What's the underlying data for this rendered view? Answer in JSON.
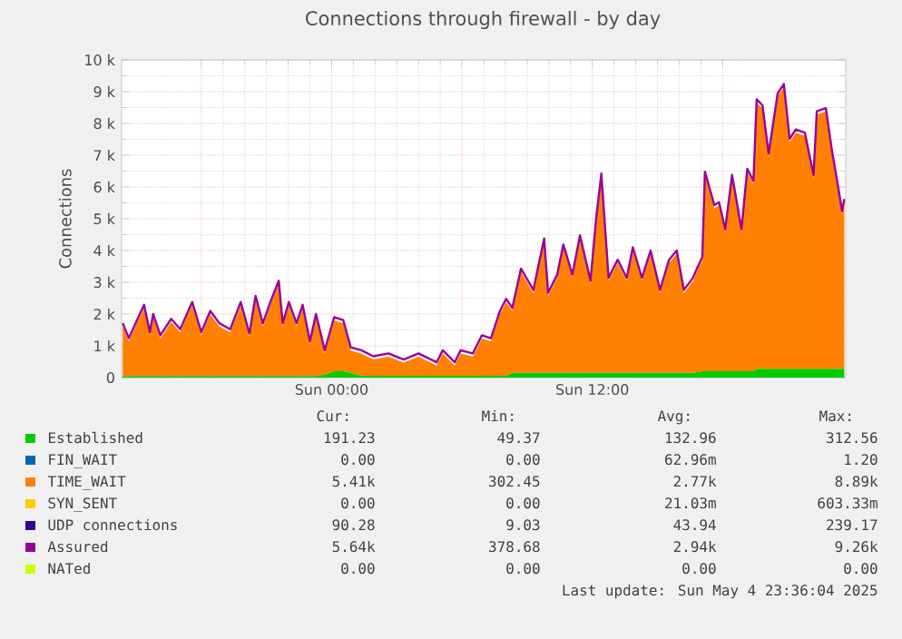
{
  "chart_data": {
    "type": "area",
    "stacked": true,
    "title": "Connections through firewall - by day",
    "ylabel": "Connections",
    "grid": true,
    "legend": "bottom",
    "xlim": [
      "2025-05-03T14:20",
      "2025-05-04T23:40"
    ],
    "xticks": [
      {
        "value": "2025-05-03T18:00",
        "label": null
      },
      {
        "value": "2025-05-04T00:00",
        "label": "Sun 00:00"
      },
      {
        "value": "2025-05-04T06:00",
        "label": null
      },
      {
        "value": "2025-05-04T12:00",
        "label": "Sun 12:00"
      },
      {
        "value": "2025-05-04T18:00",
        "label": null
      }
    ],
    "ylim": [
      0,
      10000
    ],
    "yticks": [
      0,
      {
        "value": 1000,
        "label": "1 k"
      },
      {
        "value": 2000,
        "label": "2 k"
      },
      {
        "value": 3000,
        "label": "3 k"
      },
      {
        "value": 4000,
        "label": "4 k"
      },
      {
        "value": 5000,
        "label": "5 k"
      },
      {
        "value": 6000,
        "label": "6 k"
      },
      {
        "value": 7000,
        "label": "7 k"
      },
      {
        "value": 8000,
        "label": "8 k"
      },
      {
        "value": 9000,
        "label": "9 k"
      },
      {
        "value": 10000,
        "label": "10 k"
      }
    ],
    "x": [
      "2025-05-03T14:23",
      "2025-05-03T14:40",
      "2025-05-03T15:22",
      "2025-05-03T15:38",
      "2025-05-03T15:47",
      "2025-05-03T16:07",
      "2025-05-03T16:37",
      "2025-05-03T17:02",
      "2025-05-03T17:35",
      "2025-05-03T18:00",
      "2025-05-03T18:25",
      "2025-05-03T18:50",
      "2025-05-03T19:20",
      "2025-05-03T19:49",
      "2025-05-03T20:13",
      "2025-05-03T20:30",
      "2025-05-03T20:50",
      "2025-05-03T21:11",
      "2025-05-03T21:34",
      "2025-05-03T21:45",
      "2025-05-03T22:02",
      "2025-05-03T22:23",
      "2025-05-03T22:40",
      "2025-05-03T23:00",
      "2025-05-03T23:17",
      "2025-05-03T23:41",
      "2025-05-04T00:07",
      "2025-05-04T00:32",
      "2025-05-04T00:53",
      "2025-05-04T01:22",
      "2025-05-04T01:55",
      "2025-05-04T02:37",
      "2025-05-04T03:19",
      "2025-05-04T04:00",
      "2025-05-04T04:50",
      "2025-05-04T05:07",
      "2025-05-04T05:40",
      "2025-05-04T05:56",
      "2025-05-04T06:30",
      "2025-05-04T06:55",
      "2025-05-04T07:20",
      "2025-05-04T07:45",
      "2025-05-04T08:02",
      "2025-05-04T08:19",
      "2025-05-04T08:43",
      "2025-05-04T09:17",
      "2025-05-04T09:47",
      "2025-05-04T09:58",
      "2025-05-04T10:23",
      "2025-05-04T10:40",
      "2025-05-04T11:05",
      "2025-05-04T11:26",
      "2025-05-04T11:55",
      "2025-05-04T12:11",
      "2025-05-04T12:25",
      "2025-05-04T12:45",
      "2025-05-04T13:10",
      "2025-05-04T13:35",
      "2025-05-04T13:52",
      "2025-05-04T14:17",
      "2025-05-04T14:41",
      "2025-05-04T15:07",
      "2025-05-04T15:32",
      "2025-05-04T15:53",
      "2025-05-04T16:13",
      "2025-05-04T16:38",
      "2025-05-04T17:04",
      "2025-05-04T17:11",
      "2025-05-04T17:37",
      "2025-05-04T17:50",
      "2025-05-04T18:07",
      "2025-05-04T18:26",
      "2025-05-04T18:52",
      "2025-05-04T19:08",
      "2025-05-04T19:25",
      "2025-05-04T19:34",
      "2025-05-04T19:50",
      "2025-05-04T20:07",
      "2025-05-04T20:32",
      "2025-05-04T20:49",
      "2025-05-04T21:05",
      "2025-05-04T21:22",
      "2025-05-04T21:47",
      "2025-05-04T22:11",
      "2025-05-04T22:20",
      "2025-05-04T22:45",
      "2025-05-04T23:02",
      "2025-05-04T23:19",
      "2025-05-04T23:30",
      "2025-05-04T23:36"
    ],
    "series": [
      {
        "name": "Established",
        "color": "#00cc00",
        "values": [
          50,
          50,
          50,
          50,
          50,
          50,
          50,
          50,
          50,
          50,
          50,
          50,
          50,
          50,
          50,
          50,
          50,
          50,
          50,
          50,
          50,
          50,
          50,
          50,
          50,
          100,
          200,
          200,
          150,
          60,
          60,
          60,
          60,
          60,
          60,
          60,
          60,
          60,
          60,
          60,
          60,
          60,
          60,
          150,
          150,
          150,
          150,
          150,
          150,
          150,
          150,
          150,
          150,
          150,
          150,
          150,
          150,
          150,
          150,
          150,
          150,
          150,
          150,
          150,
          150,
          150,
          200,
          200,
          200,
          200,
          200,
          200,
          200,
          200,
          200,
          280,
          280,
          280,
          280,
          280,
          280,
          280,
          280,
          280,
          280,
          280,
          280,
          280,
          280,
          280
        ]
      },
      {
        "name": "FIN_WAIT",
        "color": "#0066b3",
        "values": [
          null,
          null,
          null,
          null,
          null,
          null,
          null,
          null,
          null,
          null,
          null,
          null,
          null,
          null,
          null,
          null,
          null,
          null,
          null,
          null,
          null,
          null,
          null,
          null,
          null,
          null,
          null,
          null,
          null,
          null,
          null,
          null,
          null,
          null,
          null,
          null,
          null,
          null,
          null,
          null,
          null,
          null,
          null,
          null,
          null,
          null,
          null,
          null,
          null,
          null,
          null,
          null,
          null,
          null,
          null,
          null,
          null,
          null,
          null,
          null,
          null,
          null,
          null,
          null,
          null,
          null,
          null,
          null,
          null,
          null,
          null,
          null,
          null,
          null,
          null,
          null,
          null,
          null,
          null,
          null,
          null,
          null,
          null,
          null,
          null,
          null,
          null,
          null,
          null,
          null
        ]
      },
      {
        "name": "TIME_WAIT",
        "color": "#ff8000",
        "values": [
          1560,
          1090,
          2140,
          1280,
          1850,
          1180,
          1700,
          1370,
          2230,
          1280,
          1950,
          1560,
          1370,
          2230,
          1240,
          2420,
          1560,
          2230,
          2900,
          1560,
          2230,
          1560,
          2140,
          990,
          1850,
          660,
          1600,
          1510,
          700,
          700,
          510,
          600,
          410,
          600,
          320,
          700,
          320,
          700,
          600,
          1170,
          1080,
          1940,
          2320,
          1940,
          3180,
          2510,
          4130,
          2420,
          2990,
          3940,
          2990,
          4230,
          2800,
          4800,
          6170,
          2890,
          3460,
          2890,
          3850,
          2890,
          3750,
          2510,
          3460,
          3750,
          2510,
          2890,
          3510,
          6180,
          5130,
          5220,
          4370,
          6080,
          4370,
          6270,
          5890,
          8380,
          8190,
          6670,
          8570,
          8860,
          7140,
          7430,
          7330,
          6000,
          8000,
          8100,
          6760,
          5620,
          4860,
          5240
        ]
      },
      {
        "name": "SYN_SENT",
        "color": "#ffcc00",
        "values": [
          null,
          null,
          null,
          null,
          null,
          null,
          null,
          null,
          null,
          null,
          null,
          null,
          null,
          null,
          null,
          null,
          null,
          null,
          null,
          null,
          null,
          null,
          null,
          null,
          null,
          null,
          null,
          null,
          null,
          null,
          null,
          null,
          null,
          null,
          null,
          null,
          null,
          null,
          null,
          null,
          null,
          null,
          null,
          null,
          null,
          null,
          null,
          null,
          null,
          null,
          null,
          null,
          null,
          null,
          null,
          null,
          null,
          null,
          null,
          null,
          null,
          null,
          null,
          null,
          null,
          null,
          null,
          null,
          null,
          null,
          null,
          null,
          null,
          null,
          null,
          null,
          null,
          null,
          null,
          null,
          null,
          null,
          null,
          null,
          null,
          null,
          null,
          null,
          null,
          null
        ]
      },
      {
        "name": "UDP connections",
        "color": "#330099",
        "values": [
          null,
          null,
          null,
          null,
          null,
          null,
          null,
          null,
          null,
          null,
          null,
          null,
          null,
          null,
          null,
          null,
          null,
          null,
          null,
          null,
          null,
          null,
          null,
          null,
          null,
          null,
          null,
          null,
          null,
          null,
          null,
          null,
          null,
          null,
          null,
          null,
          null,
          null,
          null,
          null,
          null,
          null,
          null,
          null,
          null,
          null,
          null,
          null,
          null,
          null,
          null,
          null,
          null,
          null,
          null,
          null,
          null,
          null,
          null,
          null,
          null,
          null,
          null,
          null,
          null,
          null,
          null,
          null,
          null,
          null,
          null,
          null,
          null,
          null,
          null,
          null,
          null,
          null,
          null,
          null,
          null,
          null,
          null,
          null,
          null,
          null,
          null,
          null,
          null,
          null
        ]
      },
      {
        "name": "Assured",
        "color": "#990099",
        "type": "line",
        "values": [
          1710,
          1240,
          2290,
          1430,
          2000,
          1330,
          1850,
          1520,
          2380,
          1430,
          2100,
          1710,
          1520,
          2380,
          1390,
          2570,
          1710,
          2380,
          3050,
          1710,
          2380,
          1710,
          2290,
          1140,
          2000,
          860,
          1900,
          1810,
          950,
          860,
          670,
          760,
          570,
          760,
          480,
          860,
          480,
          860,
          760,
          1330,
          1240,
          2100,
          2480,
          2190,
          3430,
          2760,
          4380,
          2670,
          3240,
          4190,
          3240,
          4480,
          3050,
          5050,
          6420,
          3140,
          3710,
          3140,
          4100,
          3140,
          4000,
          2760,
          3710,
          4000,
          2760,
          3140,
          3810,
          6480,
          5430,
          5520,
          4670,
          6380,
          4670,
          6570,
          6190,
          8760,
          8570,
          7050,
          8950,
          9240,
          7520,
          7810,
          7710,
          6380,
          8380,
          8480,
          7140,
          6000,
          5240,
          5620
        ]
      },
      {
        "name": "NATed",
        "color": "#ccff00",
        "type": "line",
        "values": [
          null,
          null,
          null,
          null,
          null,
          null,
          null,
          null,
          null,
          null,
          null,
          null,
          null,
          null,
          null,
          null,
          null,
          null,
          null,
          null,
          null,
          null,
          null,
          null,
          null,
          null,
          null,
          null,
          null,
          null,
          null,
          null,
          null,
          null,
          null,
          null,
          null,
          null,
          null,
          null,
          null,
          null,
          null,
          null,
          null,
          null,
          null,
          null,
          null,
          null,
          null,
          null,
          null,
          null,
          null,
          null,
          null,
          null,
          null,
          null,
          null,
          null,
          null,
          null,
          null,
          null,
          null,
          null,
          null,
          null,
          null,
          null,
          null,
          null,
          null,
          null,
          null,
          null,
          null,
          null,
          null,
          null,
          null,
          null,
          null,
          null,
          null,
          null,
          null,
          null
        ]
      }
    ],
    "annotations": [
      "Cur:",
      "Min:",
      "Avg:",
      "Max:",
      "191.23",
      "49.37",
      "132.96",
      "312.56",
      "0.00",
      "0.00",
      "62.96m",
      "1.20",
      "5.41k",
      "302.45",
      "2.77k",
      "8.89k",
      "0.00",
      "0.00",
      "21.03m",
      "603.33m",
      "90.28",
      "9.03",
      "43.94",
      "239.17",
      "5.64k",
      "378.68",
      "2.94k",
      "9.26k",
      "0.00",
      "0.00",
      "0.00",
      "0.00",
      "Last update: Sun May  4 23:36:04 2025"
    ]
  }
}
